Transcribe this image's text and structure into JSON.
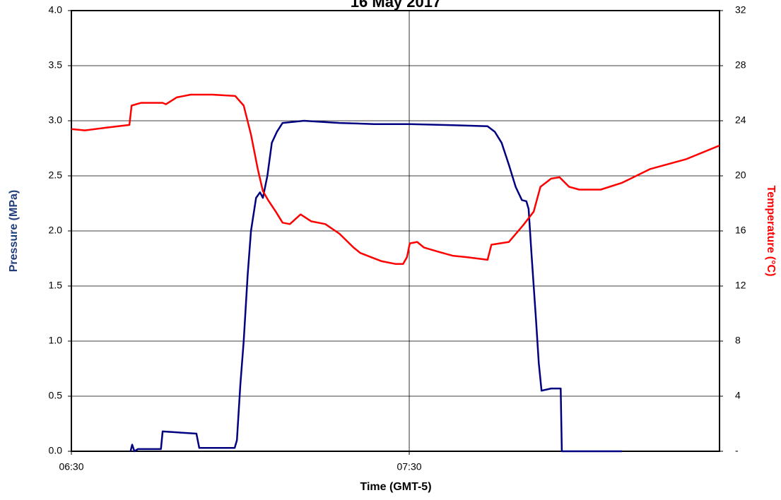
{
  "chart_data": {
    "type": "line",
    "title": "16 May 2017",
    "x_label": "Time (GMT-5)",
    "y_label": "Pressure (MPa)",
    "y2_label": "Temperature (°C)",
    "xlim": [
      390,
      505.1
    ],
    "xticks": [
      {
        "value": 390,
        "label": "06:30"
      },
      {
        "value": 450,
        "label": "07:30"
      }
    ],
    "ylim": [
      0,
      4
    ],
    "yticks": [
      {
        "value": 0,
        "label": "0.0"
      },
      0.5,
      {
        "value": 1,
        "label": "1.0"
      },
      1.5,
      {
        "value": 2,
        "label": "2.0"
      },
      2.5,
      {
        "value": 3,
        "label": "3.0"
      },
      3.5,
      {
        "value": 4,
        "label": "4.0"
      }
    ],
    "y2lim": [
      0,
      32
    ],
    "y2ticks": [
      {
        "value": 0,
        "label": "-"
      },
      4,
      8,
      12,
      16,
      20,
      24,
      28,
      32
    ],
    "grid": true,
    "series": [
      {
        "name": "Pressure",
        "color": "#000080",
        "axis": "y",
        "x": [
          400.5,
          400.8,
          401.2,
          401.8,
          405.9,
          406.2,
          412.2,
          412.7,
          419.0,
          419.4,
          420.0,
          420.6,
          421.3,
          421.9,
          422.8,
          423.5,
          424.0,
          424.8,
          425.6,
          426.5,
          427.5,
          431.3,
          437.6,
          443.8,
          450.1,
          457.7,
          463.9,
          465.2,
          466.4,
          467.7,
          468.9,
          470.0,
          470.8,
          471.2,
          471.7,
          472.5,
          473.0,
          473.5,
          475.2,
          476.9,
          477.1,
          487.8
        ],
        "values": [
          0,
          0.06,
          0,
          0.02,
          0.02,
          0.18,
          0.16,
          0.03,
          0.03,
          0.1,
          0.6,
          1.0,
          1.6,
          2.0,
          2.3,
          2.35,
          2.3,
          2.5,
          2.8,
          2.9,
          2.98,
          3.0,
          2.98,
          2.97,
          2.97,
          2.96,
          2.95,
          2.9,
          2.8,
          2.6,
          2.4,
          2.28,
          2.27,
          2.2,
          1.8,
          1.2,
          0.8,
          0.55,
          0.57,
          0.57,
          0,
          0
        ]
      },
      {
        "name": "Temperature",
        "color": "#ff0000",
        "axis": "y2",
        "x": [
          390,
          392.4,
          396.2,
          400.3,
          400.7,
          402.4,
          406.2,
          406.8,
          408.7,
          411.2,
          415.0,
          419.1,
          420.6,
          421.9,
          423.1,
          424.0,
          425.0,
          426.3,
          427.5,
          428.8,
          430.7,
          432.6,
          435.1,
          437.6,
          440.1,
          441.3,
          443.2,
          445.1,
          447.6,
          448.9,
          449.6,
          450.1,
          451.4,
          452.6,
          455.1,
          457.7,
          460.2,
          463.9,
          464.6,
          467.7,
          470.2,
          472.1,
          473.3,
          475.2,
          476.7,
          478.4,
          480.2,
          484.0,
          487.8,
          492.8,
          499.1,
          505.1
        ],
        "values": [
          23.4,
          23.3,
          23.5,
          23.7,
          25.1,
          25.3,
          25.3,
          25.2,
          25.7,
          25.9,
          25.9,
          25.8,
          25.1,
          23.0,
          20.5,
          18.9,
          18.2,
          17.4,
          16.6,
          16.5,
          17.2,
          16.7,
          16.5,
          15.8,
          14.8,
          14.4,
          14.1,
          13.8,
          13.6,
          13.6,
          14.1,
          15.1,
          15.2,
          14.8,
          14.5,
          14.2,
          14.1,
          13.9,
          15.0,
          15.2,
          16.4,
          17.4,
          19.2,
          19.8,
          19.9,
          19.2,
          19.0,
          19.0,
          19.5,
          20.5,
          21.2,
          22.2
        ]
      }
    ]
  }
}
